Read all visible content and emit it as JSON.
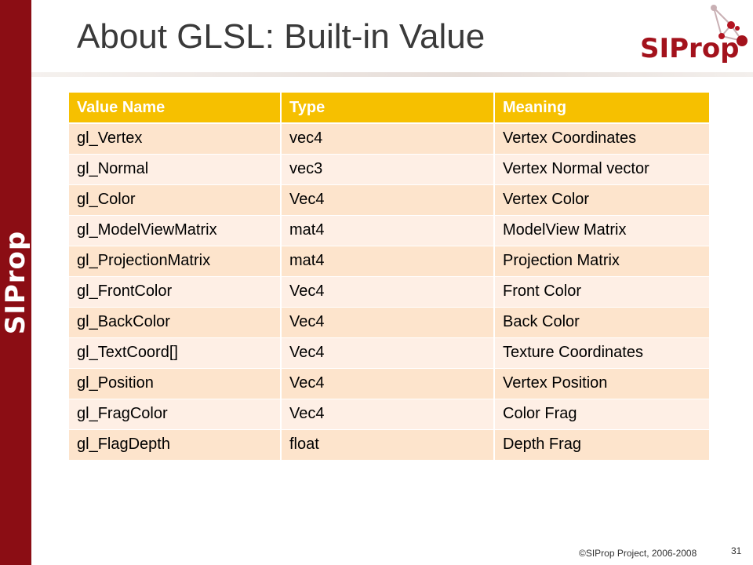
{
  "side_bar": {
    "text": "SIProp",
    "color": "#8b0d14"
  },
  "logo": {
    "text": "SIProp",
    "color": "#a3121c"
  },
  "title": "About GLSL: Built-in Value",
  "table": {
    "headers": [
      "Value Name",
      "Type",
      "Meaning"
    ],
    "header_color": "#f6c000",
    "rows": [
      [
        "gl_Vertex",
        "vec4",
        "Vertex Coordinates"
      ],
      [
        "gl_Normal",
        "vec3",
        "Vertex Normal vector"
      ],
      [
        "gl_Color",
        "Vec4",
        "Vertex Color"
      ],
      [
        "gl_ModelViewMatrix",
        "mat4",
        "ModelView Matrix"
      ],
      [
        "gl_ProjectionMatrix",
        "mat4",
        "Projection Matrix"
      ],
      [
        "gl_FrontColor",
        "Vec4",
        "Front Color"
      ],
      [
        "gl_BackColor",
        "Vec4",
        "Back Color"
      ],
      [
        "gl_TextCoord[]",
        "Vec4",
        "Texture Coordinates"
      ],
      [
        "gl_Position",
        "Vec4",
        "Vertex Position"
      ],
      [
        "gl_FragColor",
        "Vec4",
        "Color Frag"
      ],
      [
        "gl_FlagDepth",
        "float",
        "Depth Frag"
      ]
    ]
  },
  "footer": {
    "copyright": "©SIProp Project, 2006-2008",
    "page_number": "31"
  }
}
